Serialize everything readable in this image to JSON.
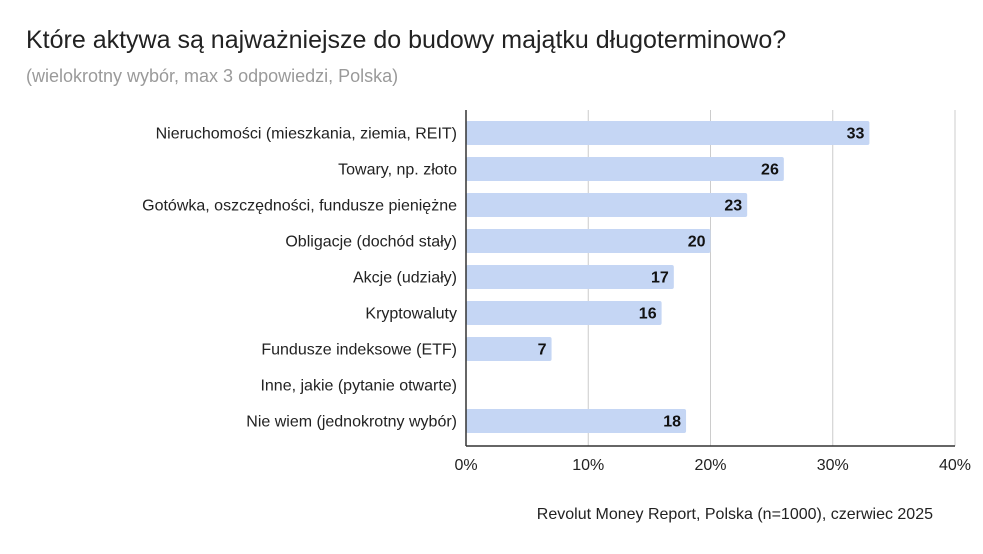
{
  "title": "Które aktywa są najważniejsze do budowy majątku długoterminowo?",
  "subtitle": "(wielokrotny wybór, max 3 odpowiedzi, Polska)",
  "source": "Revolut Money Report, Polska (n=1000), czerwiec 2025",
  "colors": {
    "bar": "#c5d6f4",
    "grid": "#cccccc",
    "axis": "#333333"
  },
  "chart_data": {
    "type": "bar",
    "orientation": "horizontal",
    "title": "Które aktywa są najważniejsze do budowy majątku długoterminowo?",
    "subtitle": "(wielokrotny wybór, max 3 odpowiedzi, Polska)",
    "categories": [
      "Nieruchomości (mieszkania, ziemia, REIT)",
      "Towary, np. złoto",
      "Gotówka, oszczędności, fundusze pieniężne",
      "Obligacje (dochód stały)",
      "Akcje (udziały)",
      "Kryptowaluty",
      "Fundusze indeksowe (ETF)",
      "Inne, jakie (pytanie otwarte)",
      "Nie wiem (jednokrotny wybór)"
    ],
    "values": [
      33,
      26,
      23,
      20,
      17,
      16,
      7,
      null,
      18
    ],
    "xlim": [
      0,
      40
    ],
    "xticks": [
      0,
      10,
      20,
      30,
      40
    ],
    "xtick_labels": [
      "0%",
      "10%",
      "20%",
      "30%",
      "40%"
    ],
    "grid": true,
    "legend": "none"
  }
}
